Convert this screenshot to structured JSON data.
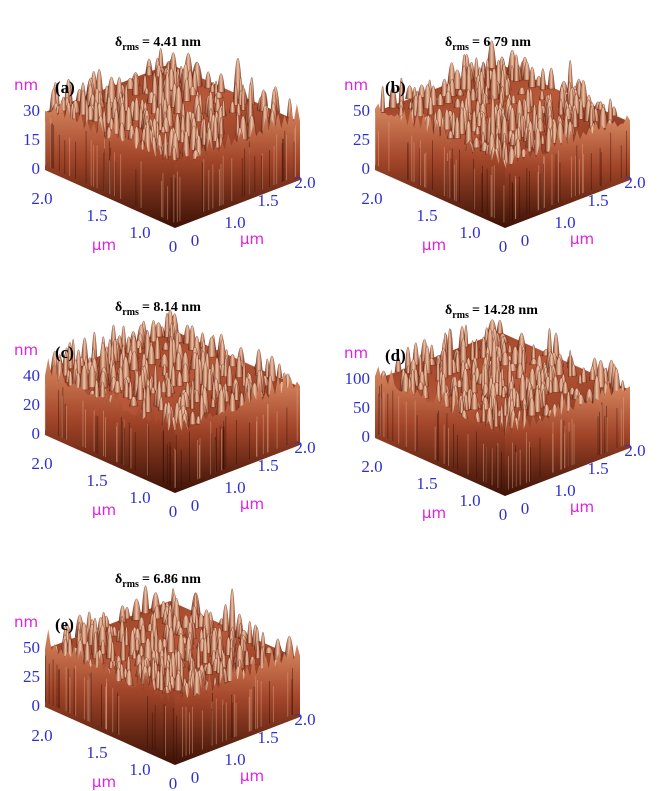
{
  "panels": [
    {
      "label": "(a)",
      "title_symbol": "δ",
      "title_sub": "rms",
      "title_value": "= 4.41 nm",
      "z_unit": "nm",
      "z_ticks": [
        "30",
        "15",
        "0"
      ],
      "x_ticks": [
        "2.0",
        "1.5",
        "1.0",
        "0"
      ],
      "x_unit": "µm",
      "y_ticks": [
        "0",
        "1.0",
        "1.5",
        "2.0"
      ],
      "y_unit": "µm"
    },
    {
      "label": "(b)",
      "title_symbol": "δ",
      "title_sub": "rms",
      "title_value": "= 6.79 nm",
      "z_unit": "nm",
      "z_ticks": [
        "50",
        "25",
        "0"
      ],
      "x_ticks": [
        "2.0",
        "1.5",
        "1.0",
        "0"
      ],
      "x_unit": "µm",
      "y_ticks": [
        "0",
        "1.0",
        "1.5",
        "2.0"
      ],
      "y_unit": "µm"
    },
    {
      "label": "(c)",
      "title_symbol": "δ",
      "title_sub": "rms",
      "title_value": "= 8.14 nm",
      "z_unit": "nm",
      "z_ticks": [
        "40",
        "20",
        "0"
      ],
      "x_ticks": [
        "2.0",
        "1.5",
        "1.0",
        "0"
      ],
      "x_unit": "µm",
      "y_ticks": [
        "0",
        "1.0",
        "1.5",
        "2.0"
      ],
      "y_unit": "µm"
    },
    {
      "label": "(d)",
      "title_symbol": "δ",
      "title_sub": "rms",
      "title_value": "= 14.28 nm",
      "z_unit": "nm",
      "z_ticks": [
        "100",
        "50",
        "0"
      ],
      "x_ticks": [
        "2.0",
        "1.5",
        "1.0",
        "0"
      ],
      "x_unit": "µm",
      "y_ticks": [
        "0",
        "1.0",
        "1.5",
        "2.0"
      ],
      "y_unit": "µm"
    },
    {
      "label": "(e)",
      "title_symbol": "δ",
      "title_sub": "rms",
      "title_value": "= 6.86 nm",
      "z_unit": "nm",
      "z_ticks": [
        "50",
        "25",
        "0"
      ],
      "x_ticks": [
        "2.0",
        "1.5",
        "1.0",
        "0"
      ],
      "x_unit": "µm",
      "y_ticks": [
        "0",
        "1.0",
        "1.5",
        "2.0"
      ],
      "y_unit": "µm"
    }
  ]
}
